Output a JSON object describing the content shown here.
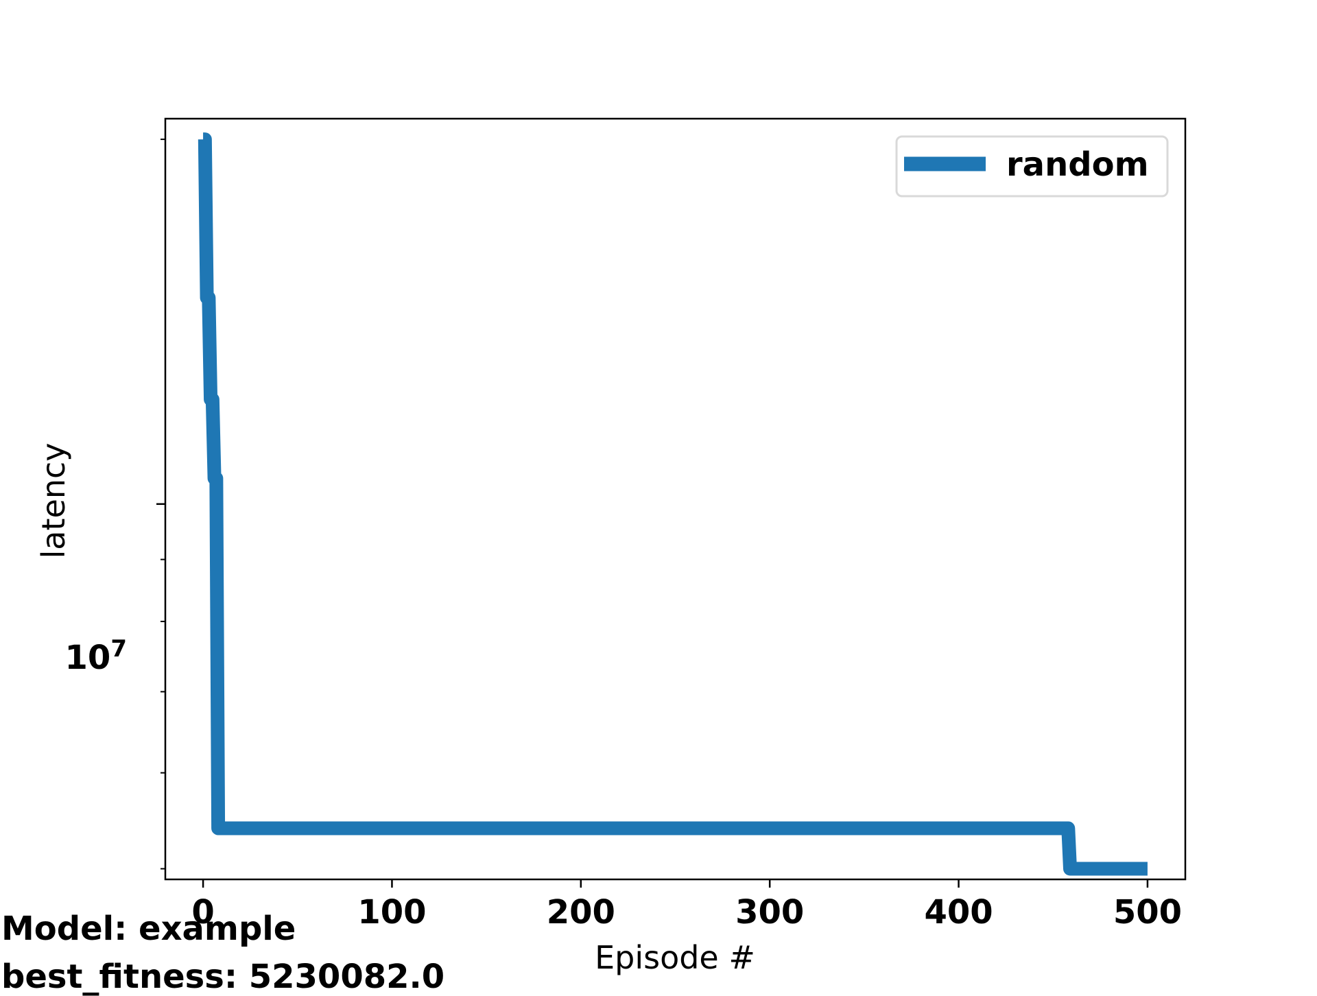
{
  "chart_data": {
    "type": "line",
    "title": "",
    "xlabel": "Episode #",
    "ylabel": "latency",
    "xlim": [
      -20,
      520
    ],
    "ylim": [
      4900000,
      20800000
    ],
    "y_scale": "log",
    "x_ticks": [
      0,
      100,
      200,
      300,
      400,
      500
    ],
    "y_major_ticks": [
      10000000
    ],
    "y_major_tick_base": "10",
    "y_major_tick_exponent": "7",
    "y_minor_ticks": [
      5000000,
      6000000,
      7000000,
      8000000,
      9000000,
      20000000
    ],
    "grid": false,
    "legend_position": "top-right",
    "series": [
      {
        "name": "random",
        "color": "#1f77b4",
        "x": [
          0,
          1,
          2,
          3,
          4,
          5,
          6,
          7,
          8,
          9,
          10,
          11,
          457,
          458,
          459,
          460,
          500
        ],
        "y": [
          20000000,
          20000000,
          14800000,
          14800000,
          12200000,
          12200000,
          10500000,
          10500000,
          5400000,
          5400000,
          5400000,
          5400000,
          5400000,
          5400000,
          5000000,
          5000000,
          5000000
        ]
      }
    ]
  },
  "annotations": {
    "model_line": "Model: example",
    "fitness_line": "best_fitness: 5230082.0"
  }
}
